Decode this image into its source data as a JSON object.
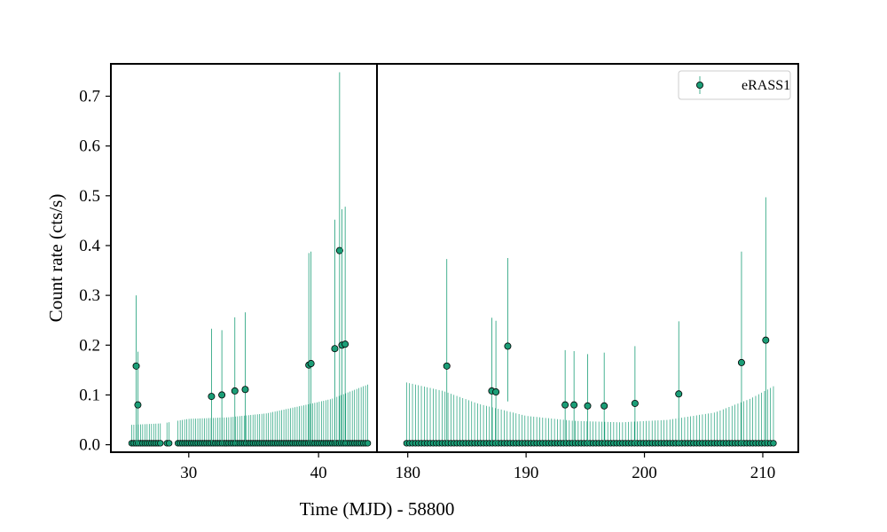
{
  "chart_data": {
    "type": "scatter",
    "ylabel": "Count rate (cts/s)",
    "xlabel": "Time (MJD) - 58800",
    "ylim": [
      -0.015,
      0.765
    ],
    "yticks": [
      0.0,
      0.1,
      0.2,
      0.3,
      0.4,
      0.5,
      0.6,
      0.7
    ],
    "ytick_labels": [
      "0.0",
      "0.1",
      "0.2",
      "0.3",
      "0.4",
      "0.5",
      "0.6",
      "0.7"
    ],
    "legend": {
      "placement": "top-right",
      "label": "eRASS1"
    },
    "marker_color": "#1b9e77",
    "errorbar_color": "#1b9e77",
    "panels": [
      {
        "xlim": [
          24.0,
          44.5
        ],
        "xticks": [
          30,
          40
        ],
        "xtick_labels": [
          "30",
          "40"
        ],
        "baseline": {
          "x_start": 25.6,
          "x_end": 43.9,
          "step": 0.17,
          "y": 0.003,
          "err_up": [
            [
              25.6,
              0.04
            ],
            [
              28.0,
              0.043
            ],
            [
              30.0,
              0.052
            ],
            [
              33.0,
              0.055
            ],
            [
              36.0,
              0.063
            ],
            [
              39.0,
              0.08
            ],
            [
              41.0,
              0.092
            ],
            [
              43.9,
              0.122
            ]
          ],
          "gaps": [
            [
              27.9,
              28.2
            ],
            [
              28.55,
              29.05
            ]
          ]
        },
        "points": [
          {
            "x": 25.95,
            "y": 0.158,
            "lo": 0.0,
            "hi": 0.3
          },
          {
            "x": 26.08,
            "y": 0.08,
            "lo": 0.0,
            "hi": 0.187
          },
          {
            "x": 31.75,
            "y": 0.097,
            "lo": 0.0,
            "hi": 0.233
          },
          {
            "x": 32.55,
            "y": 0.1,
            "lo": 0.0,
            "hi": 0.23
          },
          {
            "x": 33.55,
            "y": 0.108,
            "lo": 0.0,
            "hi": 0.256
          },
          {
            "x": 34.35,
            "y": 0.111,
            "lo": 0.0,
            "hi": 0.266
          },
          {
            "x": 39.25,
            "y": 0.16,
            "lo": 0.0,
            "hi": 0.385
          },
          {
            "x": 39.42,
            "y": 0.163,
            "lo": 0.0,
            "hi": 0.388
          },
          {
            "x": 41.25,
            "y": 0.193,
            "lo": 0.0,
            "hi": 0.452
          },
          {
            "x": 41.62,
            "y": 0.39,
            "lo": 0.0,
            "hi": 0.748
          },
          {
            "x": 41.8,
            "y": 0.2,
            "lo": 0.0,
            "hi": 0.473
          },
          {
            "x": 42.05,
            "y": 0.202,
            "lo": 0.0,
            "hi": 0.478
          }
        ]
      },
      {
        "xlim": [
          177.4,
          213.0
        ],
        "xticks": [
          180,
          190,
          200,
          210
        ],
        "xtick_labels": [
          "180",
          "190",
          "200",
          "210"
        ],
        "baseline": {
          "x_start": 179.9,
          "x_end": 211.1,
          "step": 0.25,
          "y": 0.003,
          "err_up": [
            [
              179.9,
              0.125
            ],
            [
              183.0,
              0.108
            ],
            [
              186.0,
              0.082
            ],
            [
              190.0,
              0.058
            ],
            [
              194.0,
              0.048
            ],
            [
              198.0,
              0.045
            ],
            [
              202.0,
              0.05
            ],
            [
              206.0,
              0.065
            ],
            [
              209.0,
              0.093
            ],
            [
              211.1,
              0.12
            ]
          ],
          "gaps": []
        },
        "points": [
          {
            "x": 183.3,
            "y": 0.158,
            "lo": 0.0,
            "hi": 0.373
          },
          {
            "x": 187.1,
            "y": 0.108,
            "lo": 0.0,
            "hi": 0.255
          },
          {
            "x": 187.45,
            "y": 0.106,
            "lo": 0.0,
            "hi": 0.249
          },
          {
            "x": 188.45,
            "y": 0.198,
            "lo": 0.087,
            "hi": 0.375
          },
          {
            "x": 193.3,
            "y": 0.08,
            "lo": 0.0,
            "hi": 0.19
          },
          {
            "x": 194.05,
            "y": 0.08,
            "lo": 0.0,
            "hi": 0.188
          },
          {
            "x": 195.2,
            "y": 0.078,
            "lo": 0.0,
            "hi": 0.182
          },
          {
            "x": 196.6,
            "y": 0.078,
            "lo": 0.0,
            "hi": 0.185
          },
          {
            "x": 199.2,
            "y": 0.083,
            "lo": 0.0,
            "hi": 0.198
          },
          {
            "x": 202.9,
            "y": 0.102,
            "lo": 0.0,
            "hi": 0.248
          },
          {
            "x": 208.2,
            "y": 0.165,
            "lo": 0.0,
            "hi": 0.388
          },
          {
            "x": 210.25,
            "y": 0.21,
            "lo": 0.0,
            "hi": 0.497
          }
        ]
      }
    ]
  }
}
